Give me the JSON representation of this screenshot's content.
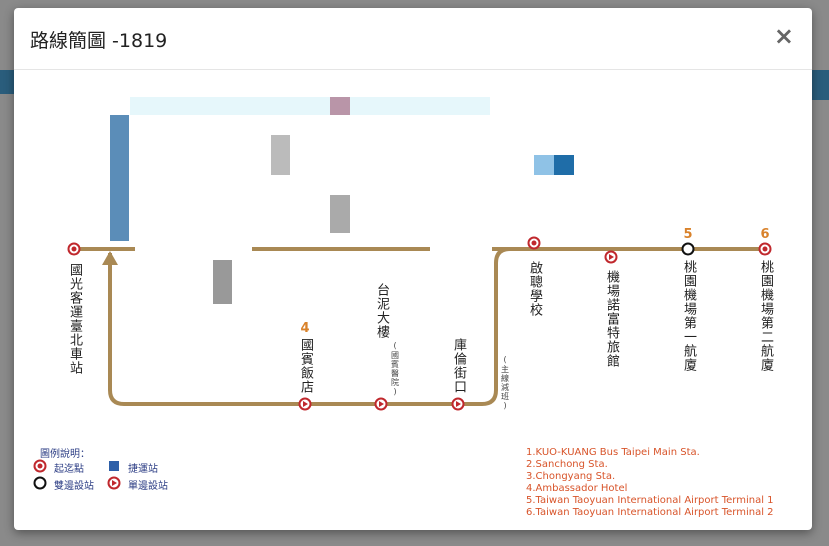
{
  "modal": {
    "title": "路線簡圖 -1819",
    "close": "×"
  },
  "map": {
    "stations": [
      {
        "label": "國光客運臺北車站"
      },
      {
        "label": "國賓飯店",
        "number": "4"
      },
      {
        "label": "台泥大樓",
        "note": "(國賓醫院)"
      },
      {
        "label": "庫倫街口"
      },
      {
        "label": "啟聰學校"
      },
      {
        "label": "機場諾富特旅館"
      },
      {
        "label": "桃園機場第一航廈",
        "number": "5"
      },
      {
        "label": "桃園機場第二航廈",
        "number": "6"
      }
    ],
    "branch_note": "(主線減班)",
    "legend": {
      "title": "圖例說明：",
      "items": [
        "起迄點",
        "捷運站",
        "雙邊設站",
        "單邊設站"
      ]
    },
    "english_list": [
      "1.KUO-KUANG Bus Taipei Main Sta.",
      "2.Sanchong Sta.",
      "3.Chongyang Sta.",
      "4.Ambassador Hotel",
      "5.Taiwan Taoyuan International Airport Terminal 1",
      "6.Taiwan Taoyuan International Airport Terminal 2"
    ]
  }
}
